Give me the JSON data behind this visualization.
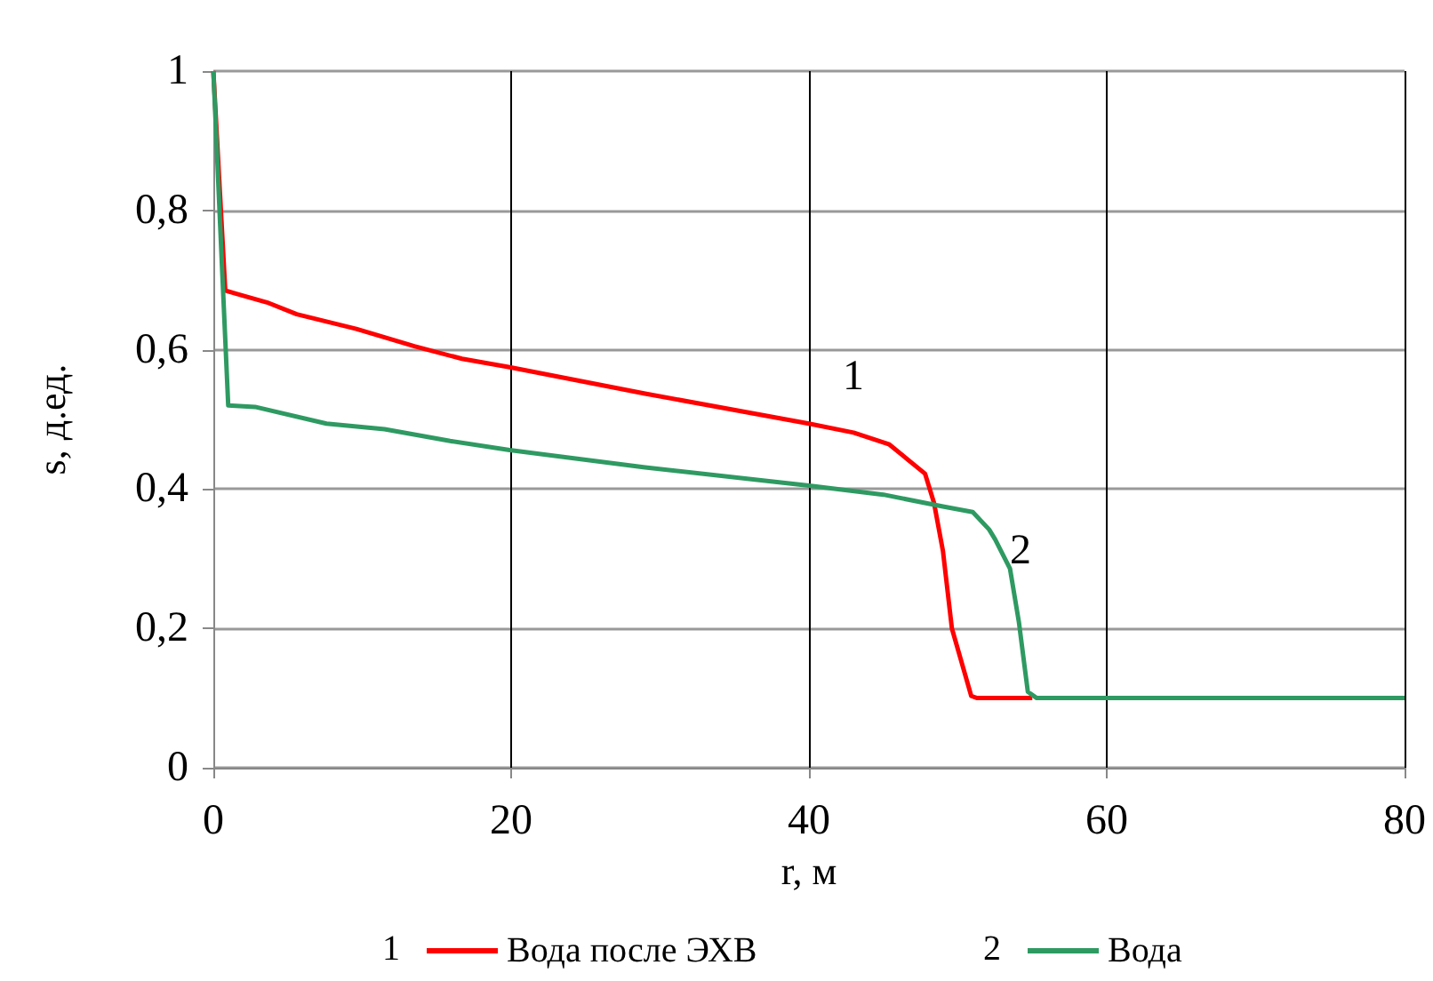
{
  "chart_data": {
    "type": "line",
    "xlabel": "r, м",
    "ylabel": "s, д.ед.",
    "xlim": [
      0,
      80
    ],
    "xticks": [
      0,
      20,
      40,
      60,
      80
    ],
    "ylim": [
      0,
      1
    ],
    "yticks": [
      0,
      {
        "value": 0.2,
        "label": "0,2"
      },
      {
        "value": 0.4,
        "label": "0,4"
      },
      {
        "value": 0.6,
        "label": "0,6"
      },
      {
        "value": 0.8,
        "label": "0,8"
      },
      1
    ],
    "grid": true,
    "legend": "bottom",
    "marker": "none",
    "line_style": "solid",
    "series": [
      {
        "name": "Вода после ЭХВ",
        "color": "#ff0000",
        "x": [
          0,
          0.8,
          1.6,
          3.6,
          5.6,
          9.6,
          13.5,
          16.7,
          19.9,
          29,
          40,
          43,
          45.4,
          47.8,
          48.4,
          49,
          49.6,
          50.9,
          51.3,
          55
        ],
        "values": [
          1,
          0.685,
          0.68,
          0.668,
          0.651,
          0.63,
          0.605,
          0.587,
          0.575,
          0.537,
          0.494,
          0.481,
          0.464,
          0.422,
          0.38,
          0.311,
          0.2,
          0.103,
          0.1,
          0.1
        ]
      },
      {
        "name": "Вода",
        "color": "#2e9a62",
        "x": [
          0,
          0.6,
          1,
          2.8,
          7.6,
          11.5,
          15.9,
          19.9,
          29,
          40,
          45,
          49,
          51,
          52.1,
          52.5,
          53.5,
          54.1,
          54.7,
          55.3,
          80
        ],
        "values": [
          1,
          0.71,
          0.52,
          0.518,
          0.494,
          0.486,
          0.469,
          0.456,
          0.431,
          0.405,
          0.392,
          0.375,
          0.367,
          0.342,
          0.328,
          0.286,
          0.209,
          0.109,
          0.1,
          0.1
        ]
      }
    ],
    "annotations": [
      "1",
      "2",
      "1",
      "2"
    ]
  }
}
